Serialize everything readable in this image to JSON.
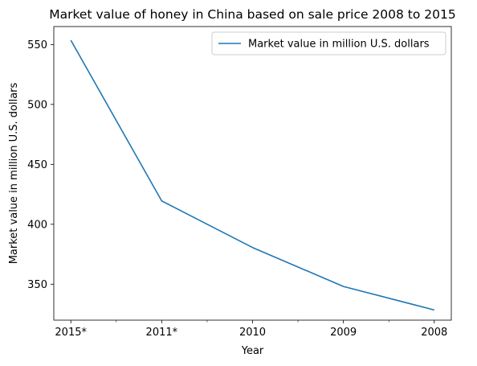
{
  "chart_data": {
    "type": "line",
    "title": "Market value of honey in China based on sale price 2008 to 2015",
    "xlabel": "Year",
    "ylabel": "Market value in million U.S. dollars",
    "categories": [
      "2015*",
      "2011*",
      "2010",
      "2009",
      "2008"
    ],
    "series": [
      {
        "name": "Market value in million U.S. dollars",
        "values": [
          553.6,
          419.5,
          380.6,
          348.1,
          328.5
        ],
        "color": "#1f77b4"
      }
    ],
    "ylim": [
      320,
      565
    ],
    "yticks": [
      350,
      400,
      450,
      500,
      550
    ],
    "grid": false,
    "legend_position": "top-right"
  }
}
